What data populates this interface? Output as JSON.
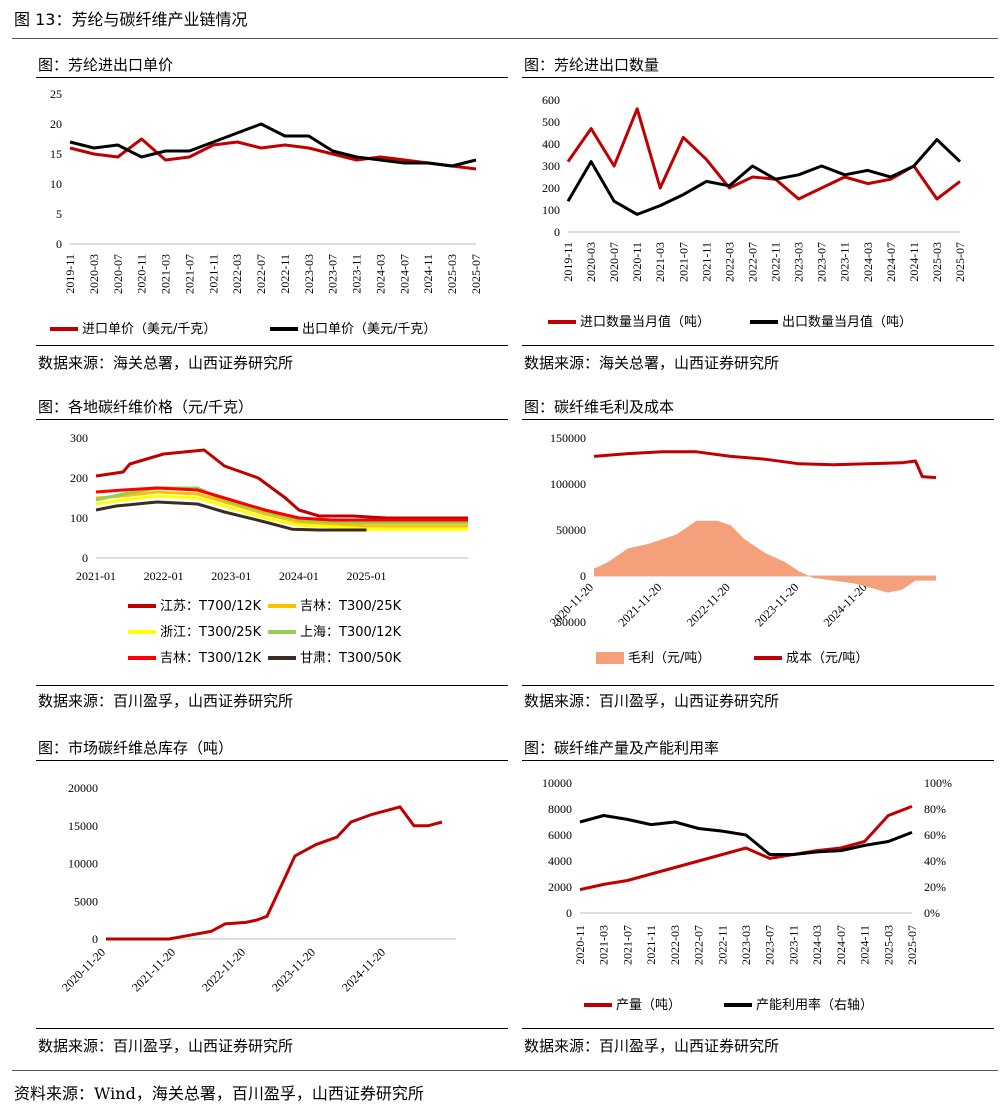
{
  "page": {
    "title": "图 13：芳纶与碳纤维产业链情况",
    "footer": "资料来源：Wind，海关总署，百川盈孚，山西证券研究所"
  },
  "colors": {
    "red": "#c00000",
    "black": "#000000",
    "orange": "#ffc000",
    "yellow": "#ffff00",
    "green": "#92d050",
    "brightred": "#ff0000",
    "brown": "#3b2b25",
    "salmon": "#f4a07a"
  },
  "chart_data": [
    {
      "id": "c1",
      "type": "line",
      "title": "图：芳纶进出口单价",
      "source": "数据来源：海关总署，山西证券研究所",
      "x": [
        "2019-11",
        "2020-03",
        "2020-07",
        "2020-11",
        "2021-03",
        "2021-07",
        "2021-11",
        "2022-03",
        "2022-07",
        "2022-11",
        "2023-03",
        "2023-07",
        "2023-11",
        "2024-03",
        "2024-07",
        "2024-11",
        "2025-03",
        "2025-07"
      ],
      "ylim": [
        0,
        25
      ],
      "yticks": [
        0,
        5,
        10,
        15,
        20,
        25
      ],
      "series": [
        {
          "name": "进口单价（美元/千克）",
          "color": "#c00000",
          "values": [
            16.0,
            15.0,
            14.5,
            17.5,
            14.0,
            14.5,
            16.5,
            17.0,
            16.0,
            16.5,
            16.0,
            15.0,
            14.0,
            14.5,
            14.0,
            13.5,
            13.0,
            12.5
          ]
        },
        {
          "name": "出口单价（美元/千克）",
          "color": "#000000",
          "values": [
            17.0,
            16.0,
            16.5,
            14.5,
            15.5,
            15.5,
            17.0,
            18.5,
            20.0,
            18.0,
            18.0,
            15.5,
            14.5,
            14.0,
            13.5,
            13.5,
            13.0,
            14.0
          ]
        }
      ]
    },
    {
      "id": "c2",
      "type": "line",
      "title": "图：芳纶进出口数量",
      "source": "数据来源：海关总署，山西证券研究所",
      "x": [
        "2019-11",
        "2020-03",
        "2020-07",
        "2020-11",
        "2021-03",
        "2021-07",
        "2021-11",
        "2022-03",
        "2022-07",
        "2022-11",
        "2023-03",
        "2023-07",
        "2023-11",
        "2024-03",
        "2024-07",
        "2024-11",
        "2025-03",
        "2025-07"
      ],
      "ylim": [
        0,
        600
      ],
      "yticks": [
        0,
        100,
        200,
        300,
        400,
        500,
        600
      ],
      "series": [
        {
          "name": "进口数量当月值（吨）",
          "color": "#c00000",
          "values": [
            320,
            470,
            300,
            560,
            200,
            430,
            330,
            200,
            250,
            240,
            150,
            200,
            250,
            220,
            240,
            300,
            150,
            230
          ]
        },
        {
          "name": "出口数量当月值（吨）",
          "color": "#000000",
          "values": [
            140,
            320,
            140,
            80,
            120,
            170,
            230,
            210,
            300,
            240,
            260,
            300,
            260,
            280,
            250,
            300,
            420,
            320
          ]
        }
      ]
    },
    {
      "id": "c3",
      "type": "line",
      "title": "图：各地碳纤维价格（元/千克）",
      "source": "数据来源：百川盈孚，山西证券研究所",
      "x": [
        "2021-01",
        "2022-01",
        "2023-01",
        "2024-01",
        "2025-01"
      ],
      "ylim": [
        0,
        300
      ],
      "yticks": [
        0,
        100,
        200,
        300
      ],
      "series": [
        {
          "name": "江苏：T700/12K",
          "color": "#c00000",
          "points": [
            [
              0.0,
              205
            ],
            [
              0.4,
              215
            ],
            [
              0.5,
              235
            ],
            [
              1.0,
              260
            ],
            [
              1.6,
              270
            ],
            [
              1.9,
              230
            ],
            [
              2.4,
              200
            ],
            [
              2.8,
              150
            ],
            [
              3.0,
              120
            ],
            [
              3.3,
              105
            ],
            [
              3.8,
              105
            ],
            [
              4.3,
              100
            ],
            [
              5.5,
              100
            ]
          ]
        },
        {
          "name": "吉林：T300/25K",
          "color": "#ffc000",
          "points": [
            [
              0.0,
              150
            ],
            [
              0.4,
              155
            ],
            [
              0.9,
              165
            ],
            [
              1.5,
              160
            ],
            [
              1.9,
              140
            ],
            [
              2.5,
              110
            ],
            [
              3.0,
              90
            ],
            [
              3.5,
              85
            ],
            [
              4.0,
              80
            ],
            [
              5.5,
              80
            ]
          ]
        },
        {
          "name": "浙江：T300/25K",
          "color": "#ffff00",
          "points": [
            [
              0.0,
              135
            ],
            [
              0.4,
              145
            ],
            [
              0.9,
              155
            ],
            [
              1.5,
              150
            ],
            [
              1.9,
              130
            ],
            [
              2.5,
              100
            ],
            [
              3.0,
              82
            ],
            [
              3.5,
              78
            ],
            [
              4.0,
              72
            ],
            [
              5.5,
              72
            ]
          ]
        },
        {
          "name": "上海：T300/12K",
          "color": "#92d050",
          "points": [
            [
              0.0,
              145
            ],
            [
              0.4,
              160
            ],
            [
              0.9,
              175
            ],
            [
              1.5,
              175
            ],
            [
              1.9,
              145
            ],
            [
              2.5,
              115
            ],
            [
              3.0,
              95
            ],
            [
              3.5,
              90
            ],
            [
              4.0,
              88
            ],
            [
              5.5,
              88
            ]
          ]
        },
        {
          "name": "吉林：T300/12K",
          "color": "#ff0000",
          "points": [
            [
              0.0,
              165
            ],
            [
              0.4,
              170
            ],
            [
              0.9,
              175
            ],
            [
              1.5,
              170
            ],
            [
              1.9,
              150
            ],
            [
              2.5,
              120
            ],
            [
              3.0,
              100
            ],
            [
              3.5,
              95
            ],
            [
              4.0,
              95
            ],
            [
              5.5,
              95
            ]
          ]
        },
        {
          "name": "甘肃：T300/50K",
          "color": "#3b2b25",
          "points": [
            [
              0.0,
              120
            ],
            [
              0.3,
              130
            ],
            [
              0.9,
              140
            ],
            [
              1.5,
              135
            ],
            [
              1.9,
              115
            ],
            [
              2.5,
              90
            ],
            [
              2.9,
              72
            ],
            [
              3.3,
              70
            ],
            [
              4.0,
              70
            ]
          ]
        }
      ],
      "legend": "bottom"
    },
    {
      "id": "c4",
      "type": "area",
      "title": "图：碳纤维毛利及成本",
      "source": "数据来源：百川盈孚，山西证券研究所",
      "x": [
        "2020-11-20",
        "2021-11-20",
        "2022-11-20",
        "2023-11-20",
        "2024-11-20"
      ],
      "ylim": [
        -50000,
        150000
      ],
      "yticks": [
        -50000,
        0,
        50000,
        100000,
        150000
      ],
      "series": [
        {
          "name": "毛利（元/吨）",
          "color": "#f4a07a",
          "kind": "area",
          "points": [
            [
              0.0,
              8000
            ],
            [
              0.2,
              15000
            ],
            [
              0.5,
              30000
            ],
            [
              0.8,
              35000
            ],
            [
              1.2,
              45000
            ],
            [
              1.5,
              60000
            ],
            [
              1.8,
              60000
            ],
            [
              2.0,
              55000
            ],
            [
              2.2,
              40000
            ],
            [
              2.5,
              25000
            ],
            [
              2.8,
              15000
            ],
            [
              3.0,
              5000
            ],
            [
              3.2,
              -2000
            ],
            [
              3.5,
              -5000
            ],
            [
              3.8,
              -8000
            ],
            [
              4.0,
              -12000
            ],
            [
              4.3,
              -18000
            ],
            [
              4.5,
              -15000
            ],
            [
              4.7,
              -5000
            ],
            [
              5.0,
              -5000
            ]
          ]
        },
        {
          "name": "成本（元/吨）",
          "color": "#c00000",
          "kind": "line",
          "points": [
            [
              0.0,
              130000
            ],
            [
              0.5,
              133000
            ],
            [
              1.0,
              135000
            ],
            [
              1.5,
              135000
            ],
            [
              2.0,
              130000
            ],
            [
              2.5,
              127000
            ],
            [
              3.0,
              122000
            ],
            [
              3.5,
              121000
            ],
            [
              4.0,
              122000
            ],
            [
              4.5,
              123000
            ],
            [
              4.7,
              125000
            ],
            [
              4.8,
              108000
            ],
            [
              5.0,
              107000
            ]
          ]
        }
      ]
    },
    {
      "id": "c5",
      "type": "line",
      "title": "图：市场碳纤维总库存（吨）",
      "source": "数据来源：百川盈孚，山西证券研究所",
      "x": [
        "2020-11-20",
        "2021-11-20",
        "2022-11-20",
        "2023-11-20",
        "2024-11-20"
      ],
      "ylim": [
        0,
        20000
      ],
      "yticks": [
        0,
        5000,
        10000,
        15000,
        20000
      ],
      "series": [
        {
          "name": "",
          "color": "#c00000",
          "points": [
            [
              0.0,
              0
            ],
            [
              0.9,
              0
            ],
            [
              1.2,
              500
            ],
            [
              1.5,
              1000
            ],
            [
              1.7,
              2000
            ],
            [
              2.0,
              2200
            ],
            [
              2.15,
              2500
            ],
            [
              2.3,
              3000
            ],
            [
              2.5,
              7000
            ],
            [
              2.7,
              11000
            ],
            [
              3.0,
              12500
            ],
            [
              3.3,
              13500
            ],
            [
              3.5,
              15500
            ],
            [
              3.8,
              16500
            ],
            [
              4.0,
              17000
            ],
            [
              4.2,
              17500
            ],
            [
              4.4,
              15000
            ],
            [
              4.6,
              15000
            ],
            [
              4.8,
              15500
            ]
          ]
        }
      ]
    },
    {
      "id": "c6",
      "type": "line",
      "title": "图：碳纤维产量及产能利用率",
      "source": "数据来源：百川盈孚，山西证券研究所",
      "x": [
        "2020-11",
        "2021-03",
        "2021-07",
        "2021-11",
        "2022-03",
        "2022-07",
        "2022-11",
        "2023-03",
        "2023-07",
        "2023-11",
        "2024-03",
        "2024-07",
        "2024-11",
        "2025-03",
        "2025-07"
      ],
      "ylim": [
        0,
        10000
      ],
      "yticks": [
        0,
        2000,
        4000,
        6000,
        8000,
        10000
      ],
      "y2lim": [
        0,
        100
      ],
      "y2ticks": [
        "0%",
        "20%",
        "40%",
        "60%",
        "80%",
        "100%"
      ],
      "series": [
        {
          "name": "产量（吨）",
          "color": "#c00000",
          "axis": "left",
          "values": [
            1800,
            2200,
            2500,
            3000,
            3500,
            4000,
            4500,
            5000,
            4200,
            4500,
            4800,
            5000,
            5500,
            7500,
            8200
          ]
        },
        {
          "name": "产能利用率（右轴）",
          "color": "#000000",
          "axis": "right",
          "values": [
            70,
            75,
            72,
            68,
            70,
            65,
            63,
            60,
            45,
            45,
            47,
            48,
            52,
            55,
            62
          ]
        }
      ]
    }
  ]
}
